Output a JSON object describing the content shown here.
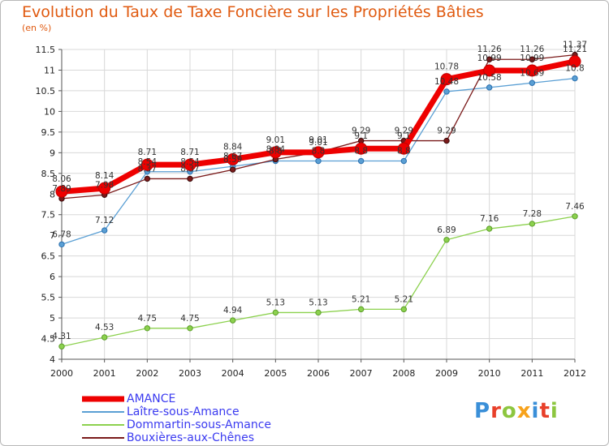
{
  "header": {
    "title": "Evolution du Taux de Taxe Foncière sur les Propriétés Bâties",
    "subtitle": "(en %)"
  },
  "logo_text": "Proxiti",
  "logo_colors": [
    "#3a8fd8",
    "#e8402a",
    "#8dc63f",
    "#f7a21b",
    "#3a8fd8",
    "#e8402a",
    "#8dc63f"
  ],
  "chart_data": {
    "type": "line",
    "title": "Evolution du Taux de Taxe Foncière sur les Propriétés Bâties",
    "ylabel": "(en %)",
    "xlabel": "",
    "x": [
      "2000",
      "2001",
      "2002",
      "2003",
      "2004",
      "2005",
      "2006",
      "2007",
      "2008",
      "2009",
      "2010",
      "2011",
      "2012"
    ],
    "ylim": [
      4,
      11.5
    ],
    "yticks": [
      "4",
      "4.5",
      "5",
      "5.5",
      "6",
      "6.5",
      "7",
      "7.5",
      "8",
      "8.5",
      "9",
      "9.5",
      "10",
      "10.5",
      "11",
      "11.5"
    ],
    "grid": true,
    "legend_position": "bottom-left",
    "series": [
      {
        "name": "AMANCE",
        "color": "#ee0000",
        "values": [
          8.06,
          8.14,
          8.71,
          8.71,
          8.84,
          9.01,
          9.01,
          9.1,
          9.1,
          10.78,
          10.99,
          10.99,
          11.21
        ],
        "labels": [
          "8.06",
          "8.14",
          "8.71",
          "8.71",
          "8.84",
          "9.01",
          "9.01",
          "9.1",
          "9.1",
          "10.78",
          "10.99",
          "10.99",
          "11.21"
        ]
      },
      {
        "name": "Laître-sous-Amance",
        "color": "#5a9fd4",
        "values": [
          6.78,
          7.12,
          8.54,
          8.54,
          8.67,
          8.8,
          8.8,
          8.8,
          8.8,
          10.48,
          10.58,
          10.69,
          10.8
        ],
        "labels": [
          "6.78",
          "7.12",
          "8.54",
          "8.54",
          "8.67",
          "8.8",
          "8.8",
          "8.8",
          "8.8",
          "10.48",
          "10.58",
          "10.69",
          "10.8"
        ]
      },
      {
        "name": "Dommartin-sous-Amance",
        "color": "#8cd14e",
        "values": [
          4.31,
          4.53,
          4.75,
          4.75,
          4.94,
          5.13,
          5.13,
          5.21,
          5.21,
          6.89,
          7.16,
          7.28,
          7.46
        ],
        "labels": [
          "4.31",
          "4.53",
          "4.75",
          "4.75",
          "4.94",
          "5.13",
          "5.13",
          "5.21",
          "5.21",
          "6.89",
          "7.16",
          "7.28",
          "7.46"
        ]
      },
      {
        "name": "Bouxières-aux-Chênes",
        "color": "#7a1a1a",
        "values": [
          7.89,
          7.98,
          8.37,
          8.37,
          8.59,
          8.84,
          9.01,
          9.29,
          9.29,
          9.29,
          11.26,
          11.26,
          11.37
        ],
        "labels": [
          "7.89",
          "7.98",
          "8.37",
          "8.37",
          "8.59",
          "8.84",
          "9.01",
          "9.29",
          "9.29",
          "9.29",
          "11.26",
          "11.26",
          "11.37"
        ]
      }
    ]
  }
}
